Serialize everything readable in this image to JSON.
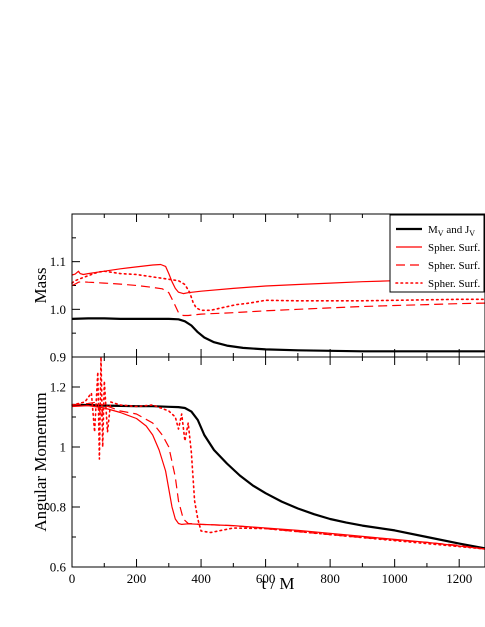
{
  "chart_data": [
    {
      "type": "line",
      "ylabel": "Mass",
      "xlim": [
        0,
        1280
      ],
      "ylim": [
        0.9,
        1.2
      ],
      "yticks": [
        "0.9",
        "1.0",
        "1.1"
      ],
      "ytick_values": [
        0.9,
        1.0,
        1.1
      ],
      "legend": {
        "placement": "top-right"
      },
      "series": [
        {
          "name": "M_V and J_V",
          "name_main": "M",
          "name_sub": "V",
          "name_mid": " and J",
          "name_sub2": "V",
          "color": "#000000",
          "style": "solid",
          "width": 2.2,
          "x": [
            0,
            50,
            100,
            150,
            200,
            250,
            300,
            330,
            350,
            370,
            390,
            410,
            440,
            480,
            530,
            600,
            700,
            800,
            900,
            1000,
            1100,
            1200,
            1280
          ],
          "y": [
            0.98,
            0.981,
            0.981,
            0.98,
            0.98,
            0.98,
            0.98,
            0.979,
            0.975,
            0.966,
            0.952,
            0.941,
            0.931,
            0.924,
            0.919,
            0.916,
            0.914,
            0.913,
            0.912,
            0.912,
            0.912,
            0.912,
            0.912
          ]
        },
        {
          "name": "Spher. Surf.",
          "color": "#ff0000",
          "style": "solid",
          "width": 1.2,
          "x": [
            0,
            10,
            20,
            25,
            35,
            50,
            100,
            150,
            200,
            250,
            275,
            290,
            300,
            310,
            320,
            330,
            345,
            360,
            400,
            500,
            600,
            700,
            800,
            900,
            1000,
            1100,
            1200,
            1280
          ],
          "y": [
            1.072,
            1.074,
            1.08,
            1.075,
            1.073,
            1.075,
            1.08,
            1.085,
            1.089,
            1.093,
            1.094,
            1.09,
            1.075,
            1.058,
            1.044,
            1.036,
            1.033,
            1.035,
            1.038,
            1.044,
            1.049,
            1.052,
            1.055,
            1.058,
            1.06,
            1.062,
            1.063,
            1.064
          ]
        },
        {
          "name": "Spher. Surf.",
          "color": "#ff0000",
          "style": "dash",
          "width": 1.2,
          "x": [
            0,
            10,
            20,
            30,
            50,
            100,
            150,
            200,
            250,
            280,
            300,
            315,
            330,
            345,
            360,
            400,
            500,
            600,
            700,
            800,
            900,
            1000,
            1100,
            1200,
            1280
          ],
          "y": [
            1.05,
            1.053,
            1.057,
            1.058,
            1.057,
            1.055,
            1.053,
            1.05,
            1.046,
            1.043,
            1.035,
            1.015,
            0.993,
            0.987,
            0.987,
            0.99,
            0.993,
            0.997,
            1.0,
            1.003,
            1.006,
            1.008,
            1.01,
            1.012,
            1.013
          ]
        },
        {
          "name": "Spher. Surf.",
          "color": "#ff0000",
          "style": "dot",
          "width": 1.6,
          "x": [
            0,
            10,
            20,
            40,
            60,
            80,
            100,
            150,
            200,
            250,
            300,
            330,
            350,
            365,
            375,
            385,
            400,
            430,
            470,
            510,
            550,
            600,
            700,
            800,
            900,
            1000,
            1100,
            1200,
            1280
          ],
          "y": [
            1.055,
            1.06,
            1.063,
            1.068,
            1.073,
            1.078,
            1.08,
            1.075,
            1.073,
            1.068,
            1.063,
            1.06,
            1.052,
            1.035,
            1.015,
            1.003,
            0.998,
            0.998,
            1.004,
            1.01,
            1.013,
            1.019,
            1.018,
            1.018,
            1.018,
            1.019,
            1.02,
            1.021,
            1.021
          ]
        }
      ]
    },
    {
      "type": "line",
      "xlabel": "t / M",
      "ylabel": "Angular Momentum",
      "xlim": [
        0,
        1280
      ],
      "ylim": [
        0.6,
        1.3
      ],
      "xticks": [
        "0",
        "200",
        "400",
        "600",
        "800",
        "1000",
        "1200"
      ],
      "xtick_values": [
        0,
        200,
        400,
        600,
        800,
        1000,
        1200
      ],
      "yticks": [
        "0.6",
        "0.8",
        "1",
        "1.2"
      ],
      "ytick_values": [
        0.6,
        0.8,
        1.0,
        1.2
      ],
      "series": [
        {
          "name": "M_V and J_V",
          "color": "#000000",
          "style": "solid",
          "width": 2.2,
          "x": [
            0,
            50,
            100,
            150,
            200,
            250,
            300,
            330,
            350,
            370,
            390,
            410,
            440,
            480,
            520,
            560,
            600,
            650,
            700,
            750,
            800,
            850,
            900,
            1000,
            1100,
            1200,
            1280
          ],
          "y": [
            1.14,
            1.14,
            1.138,
            1.137,
            1.136,
            1.136,
            1.134,
            1.133,
            1.13,
            1.118,
            1.09,
            1.04,
            0.99,
            0.945,
            0.905,
            0.872,
            0.846,
            0.818,
            0.795,
            0.776,
            0.76,
            0.748,
            0.738,
            0.722,
            0.7,
            0.678,
            0.662
          ]
        },
        {
          "name": "Spher. Surf.",
          "color": "#ff0000",
          "style": "solid",
          "width": 1.2,
          "x": [
            0,
            50,
            100,
            150,
            200,
            230,
            250,
            270,
            290,
            300,
            310,
            320,
            330,
            340,
            360,
            400,
            500,
            600,
            700,
            800,
            900,
            1000,
            1100,
            1200,
            1280
          ],
          "y": [
            1.135,
            1.138,
            1.13,
            1.115,
            1.095,
            1.07,
            1.04,
            0.99,
            0.92,
            0.86,
            0.8,
            0.76,
            0.745,
            0.742,
            0.744,
            0.742,
            0.738,
            0.73,
            0.722,
            0.712,
            0.702,
            0.692,
            0.682,
            0.67,
            0.66
          ]
        },
        {
          "name": "Spher. Surf.",
          "color": "#ff0000",
          "style": "dash",
          "width": 1.2,
          "x": [
            0,
            50,
            80,
            90,
            100,
            150,
            200,
            250,
            280,
            300,
            320,
            330,
            345,
            360,
            400,
            500,
            600,
            700,
            800,
            900,
            1000,
            1100,
            1200,
            1280
          ],
          "y": [
            1.14,
            1.145,
            1.15,
            1.1,
            1.14,
            1.12,
            1.11,
            1.08,
            1.04,
            1.0,
            0.9,
            0.82,
            0.76,
            0.745,
            0.742,
            0.738,
            0.728,
            0.718,
            0.708,
            0.698,
            0.69,
            0.682,
            0.672,
            0.66
          ]
        },
        {
          "name": "Spher. Surf.",
          "color": "#ff0000",
          "style": "dot",
          "width": 1.6,
          "x": [
            0,
            40,
            60,
            70,
            80,
            85,
            90,
            95,
            100,
            110,
            120,
            150,
            200,
            250,
            300,
            320,
            330,
            340,
            350,
            360,
            370,
            380,
            390,
            400,
            430,
            500,
            600,
            700,
            800,
            900,
            1000,
            1100,
            1200,
            1280
          ],
          "y": [
            1.14,
            1.15,
            1.18,
            1.05,
            1.25,
            0.96,
            1.3,
            1.0,
            1.22,
            1.05,
            1.15,
            1.14,
            1.135,
            1.14,
            1.12,
            1.1,
            1.06,
            1.11,
            1.02,
            1.08,
            0.98,
            0.82,
            0.76,
            0.72,
            0.715,
            0.73,
            0.728,
            0.718,
            0.708,
            0.698,
            0.688,
            0.678,
            0.668,
            0.66
          ]
        }
      ]
    }
  ]
}
